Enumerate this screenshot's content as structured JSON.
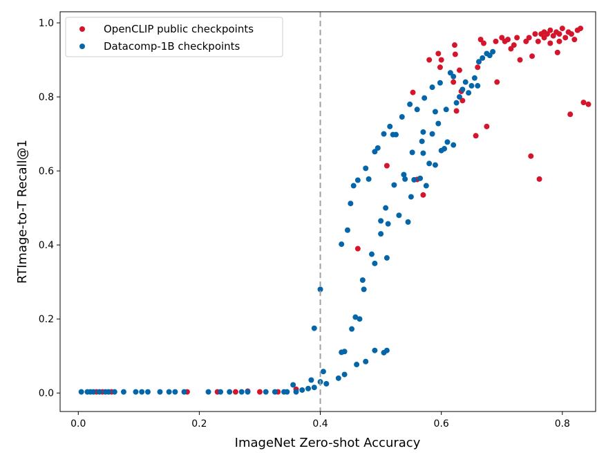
{
  "chart_data": {
    "type": "scatter",
    "xlabel": "ImageNet Zero-shot Accuracy",
    "ylabel": "RTImage-to-T Recall@1",
    "xlim": [
      -0.03,
      0.855
    ],
    "ylim": [
      -0.05,
      1.03
    ],
    "xticks": [
      {
        "value": 0.0,
        "label": "0.0"
      },
      {
        "value": 0.2,
        "label": "0.2"
      },
      {
        "value": 0.4,
        "label": "0.4"
      },
      {
        "value": 0.6,
        "label": "0.6"
      },
      {
        "value": 0.8,
        "label": "0.8"
      }
    ],
    "yticks": [
      {
        "value": 0.0,
        "label": "0.0"
      },
      {
        "value": 0.2,
        "label": "0.2"
      },
      {
        "value": 0.4,
        "label": "0.4"
      },
      {
        "value": 0.6,
        "label": "0.6"
      },
      {
        "value": 0.8,
        "label": "0.8"
      },
      {
        "value": 1.0,
        "label": "1.0"
      }
    ],
    "grid": false,
    "legend_position": "top-left",
    "reference_line": {
      "axis": "x",
      "value": 0.4,
      "style": "dashed",
      "color": "#a0a0a0"
    },
    "series": [
      {
        "name": "OpenCLIP public checkpoints",
        "color": "#d4152b",
        "points": [
          [
            0.03,
            0.003
          ],
          [
            0.04,
            0.003
          ],
          [
            0.055,
            0.003
          ],
          [
            0.18,
            0.003
          ],
          [
            0.23,
            0.003
          ],
          [
            0.26,
            0.003
          ],
          [
            0.28,
            0.005
          ],
          [
            0.3,
            0.003
          ],
          [
            0.33,
            0.003
          ],
          [
            0.36,
            0.01
          ],
          [
            0.462,
            0.39
          ],
          [
            0.51,
            0.614
          ],
          [
            0.553,
            0.812
          ],
          [
            0.56,
            0.577
          ],
          [
            0.57,
            0.535
          ],
          [
            0.58,
            0.9
          ],
          [
            0.595,
            0.917
          ],
          [
            0.598,
            0.88
          ],
          [
            0.6,
            0.9
          ],
          [
            0.62,
            0.84
          ],
          [
            0.622,
            0.94
          ],
          [
            0.623,
            0.915
          ],
          [
            0.625,
            0.762
          ],
          [
            0.63,
            0.872
          ],
          [
            0.633,
            0.815
          ],
          [
            0.635,
            0.79
          ],
          [
            0.657,
            0.695
          ],
          [
            0.66,
            0.88
          ],
          [
            0.665,
            0.955
          ],
          [
            0.67,
            0.945
          ],
          [
            0.675,
            0.72
          ],
          [
            0.69,
            0.95
          ],
          [
            0.692,
            0.84
          ],
          [
            0.7,
            0.96
          ],
          [
            0.705,
            0.95
          ],
          [
            0.71,
            0.955
          ],
          [
            0.715,
            0.93
          ],
          [
            0.72,
            0.94
          ],
          [
            0.725,
            0.96
          ],
          [
            0.73,
            0.9
          ],
          [
            0.74,
            0.95
          ],
          [
            0.745,
            0.96
          ],
          [
            0.748,
            0.64
          ],
          [
            0.75,
            0.91
          ],
          [
            0.755,
            0.97
          ],
          [
            0.76,
            0.95
          ],
          [
            0.762,
            0.578
          ],
          [
            0.765,
            0.97
          ],
          [
            0.77,
            0.975
          ],
          [
            0.775,
            0.97
          ],
          [
            0.78,
            0.98
          ],
          [
            0.785,
            0.965
          ],
          [
            0.79,
            0.975
          ],
          [
            0.792,
            0.92
          ],
          [
            0.795,
            0.97
          ],
          [
            0.8,
            0.985
          ],
          [
            0.805,
            0.96
          ],
          [
            0.81,
            0.975
          ],
          [
            0.813,
            0.753
          ],
          [
            0.815,
            0.97
          ],
          [
            0.82,
            0.955
          ],
          [
            0.825,
            0.98
          ],
          [
            0.83,
            0.985
          ],
          [
            0.835,
            0.785
          ],
          [
            0.843,
            0.78
          ],
          [
            0.78,
            0.945
          ],
          [
            0.795,
            0.95
          ],
          [
            0.77,
            0.96
          ]
        ]
      },
      {
        "name": "Datacomp-1B checkpoints",
        "color": "#0466a8",
        "points": [
          [
            0.005,
            0.003
          ],
          [
            0.015,
            0.003
          ],
          [
            0.02,
            0.003
          ],
          [
            0.025,
            0.003
          ],
          [
            0.035,
            0.003
          ],
          [
            0.045,
            0.003
          ],
          [
            0.05,
            0.003
          ],
          [
            0.06,
            0.003
          ],
          [
            0.075,
            0.003
          ],
          [
            0.095,
            0.003
          ],
          [
            0.105,
            0.003
          ],
          [
            0.115,
            0.003
          ],
          [
            0.135,
            0.003
          ],
          [
            0.15,
            0.003
          ],
          [
            0.16,
            0.003
          ],
          [
            0.175,
            0.003
          ],
          [
            0.215,
            0.003
          ],
          [
            0.235,
            0.003
          ],
          [
            0.25,
            0.003
          ],
          [
            0.27,
            0.003
          ],
          [
            0.28,
            0.003
          ],
          [
            0.31,
            0.003
          ],
          [
            0.325,
            0.003
          ],
          [
            0.34,
            0.003
          ],
          [
            0.345,
            0.003
          ],
          [
            0.355,
            0.022
          ],
          [
            0.36,
            0.003
          ],
          [
            0.37,
            0.008
          ],
          [
            0.38,
            0.012
          ],
          [
            0.385,
            0.035
          ],
          [
            0.39,
            0.015
          ],
          [
            0.39,
            0.175
          ],
          [
            0.4,
            0.28
          ],
          [
            0.4,
            0.03
          ],
          [
            0.405,
            0.058
          ],
          [
            0.41,
            0.025
          ],
          [
            0.43,
            0.04
          ],
          [
            0.435,
            0.11
          ],
          [
            0.435,
            0.402
          ],
          [
            0.44,
            0.112
          ],
          [
            0.44,
            0.05
          ],
          [
            0.445,
            0.44
          ],
          [
            0.45,
            0.512
          ],
          [
            0.452,
            0.173
          ],
          [
            0.455,
            0.56
          ],
          [
            0.458,
            0.205
          ],
          [
            0.46,
            0.077
          ],
          [
            0.462,
            0.575
          ],
          [
            0.465,
            0.2
          ],
          [
            0.47,
            0.305
          ],
          [
            0.472,
            0.28
          ],
          [
            0.475,
            0.085
          ],
          [
            0.475,
            0.607
          ],
          [
            0.48,
            0.578
          ],
          [
            0.485,
            0.375
          ],
          [
            0.49,
            0.35
          ],
          [
            0.49,
            0.115
          ],
          [
            0.49,
            0.652
          ],
          [
            0.495,
            0.662
          ],
          [
            0.5,
            0.43
          ],
          [
            0.5,
            0.465
          ],
          [
            0.505,
            0.7
          ],
          [
            0.505,
            0.109
          ],
          [
            0.51,
            0.115
          ],
          [
            0.508,
            0.5
          ],
          [
            0.51,
            0.365
          ],
          [
            0.512,
            0.457
          ],
          [
            0.515,
            0.72
          ],
          [
            0.52,
            0.698
          ],
          [
            0.522,
            0.562
          ],
          [
            0.525,
            0.698
          ],
          [
            0.53,
            0.48
          ],
          [
            0.535,
            0.746
          ],
          [
            0.538,
            0.59
          ],
          [
            0.54,
            0.578
          ],
          [
            0.545,
            0.462
          ],
          [
            0.548,
            0.78
          ],
          [
            0.55,
            0.53
          ],
          [
            0.552,
            0.65
          ],
          [
            0.555,
            0.576
          ],
          [
            0.56,
            0.766
          ],
          [
            0.565,
            0.58
          ],
          [
            0.568,
            0.68
          ],
          [
            0.57,
            0.705
          ],
          [
            0.572,
            0.797
          ],
          [
            0.575,
            0.56
          ],
          [
            0.58,
            0.62
          ],
          [
            0.585,
            0.7
          ],
          [
            0.585,
            0.826
          ],
          [
            0.59,
            0.616
          ],
          [
            0.595,
            0.728
          ],
          [
            0.598,
            0.838
          ],
          [
            0.6,
            0.655
          ],
          [
            0.605,
            0.66
          ],
          [
            0.608,
            0.766
          ],
          [
            0.61,
            0.678
          ],
          [
            0.615,
            0.865
          ],
          [
            0.62,
            0.855
          ],
          [
            0.625,
            0.784
          ],
          [
            0.63,
            0.8
          ],
          [
            0.635,
            0.82
          ],
          [
            0.64,
            0.84
          ],
          [
            0.645,
            0.811
          ],
          [
            0.65,
            0.83
          ],
          [
            0.655,
            0.851
          ],
          [
            0.66,
            0.83
          ],
          [
            0.662,
            0.895
          ],
          [
            0.668,
            0.905
          ],
          [
            0.675,
            0.917
          ],
          [
            0.68,
            0.912
          ],
          [
            0.685,
            0.922
          ],
          [
            0.59,
            0.76
          ],
          [
            0.62,
            0.67
          ],
          [
            0.57,
            0.648
          ]
        ]
      }
    ]
  }
}
